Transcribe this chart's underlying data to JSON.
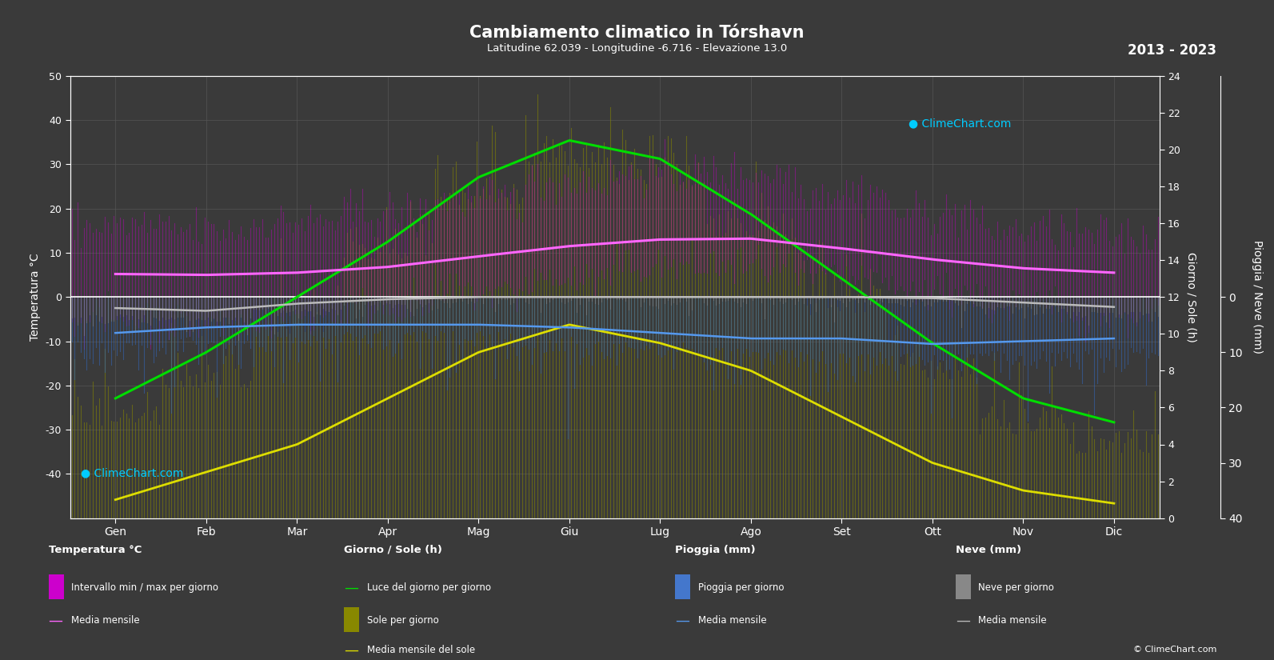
{
  "title": "Cambiamento climatico in Tórshavn",
  "subtitle": "Latitudine 62.039 - Longitudine -6.716 - Elevazione 13.0",
  "year_range": "2013 - 2023",
  "months": [
    "Gen",
    "Feb",
    "Mar",
    "Apr",
    "Mag",
    "Giu",
    "Lug",
    "Ago",
    "Set",
    "Ott",
    "Nov",
    "Dic"
  ],
  "background_color": "#3a3a3a",
  "temp_mean": [
    5.2,
    5.0,
    5.5,
    6.8,
    9.2,
    11.5,
    13.0,
    13.2,
    11.0,
    8.5,
    6.5,
    5.5
  ],
  "temp_daily_max": [
    16,
    15,
    17,
    19,
    22,
    26,
    28,
    28,
    24,
    19,
    15,
    14
  ],
  "temp_daily_min": [
    -5,
    -6,
    -4,
    -2,
    1,
    4,
    7,
    7,
    4,
    1,
    -2,
    -4
  ],
  "daylight_hours": [
    6.5,
    9.0,
    12.0,
    15.0,
    18.5,
    20.5,
    19.5,
    16.5,
    13.0,
    9.5,
    6.5,
    5.2
  ],
  "sunshine_mean": [
    1.0,
    2.5,
    4.0,
    6.5,
    9.0,
    10.5,
    9.5,
    8.0,
    5.5,
    3.0,
    1.5,
    0.8
  ],
  "sunshine_daily_max": [
    5.0,
    7.0,
    10.0,
    14.0,
    17.0,
    19.0,
    18.0,
    15.0,
    11.0,
    7.5,
    4.5,
    3.5
  ],
  "rain_daily_mm": [
    8.0,
    7.0,
    6.5,
    6.0,
    6.0,
    7.0,
    8.0,
    9.0,
    9.5,
    10.0,
    9.5,
    9.0
  ],
  "rain_mean_mm": [
    6.5,
    5.5,
    5.0,
    5.0,
    5.0,
    5.5,
    6.5,
    7.5,
    7.5,
    8.5,
    8.0,
    7.5
  ],
  "snow_daily_mm": [
    3.0,
    3.5,
    2.0,
    0.8,
    0.1,
    0.0,
    0.0,
    0.0,
    0.0,
    0.3,
    1.5,
    2.5
  ],
  "snow_mean_mm": [
    2.0,
    2.5,
    1.2,
    0.4,
    0.0,
    0.0,
    0.0,
    0.0,
    0.0,
    0.2,
    1.0,
    1.8
  ],
  "color_text": "#ffffff",
  "color_grid": "#555555",
  "color_temp_bar": "#cc00cc",
  "color_temp_line": "#ff66ff",
  "color_daylight": "#00dd00",
  "color_sun_bar": "#aaaa00",
  "color_sun_line": "#dddd00",
  "color_rain_bar": "#4477cc",
  "color_rain_line": "#5599ee",
  "color_snow_bar": "#888888",
  "color_snow_line": "#bbbbbb"
}
